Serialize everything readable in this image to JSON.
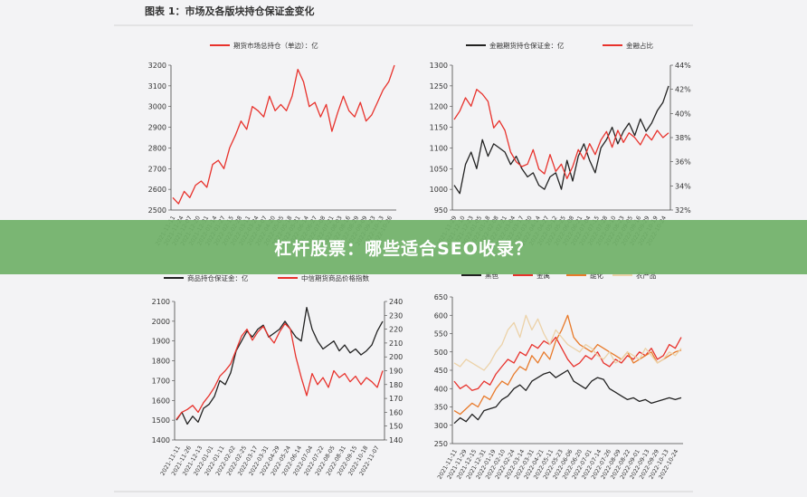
{
  "figure_title": "图表 1：市场及各版块持仓保证金变化",
  "banner_text": "杠杆股票：哪些适合SEO收录？",
  "colors": {
    "black": "#222222",
    "red": "#e8322c",
    "orange": "#e87a2a",
    "beige": "#ecd2a8",
    "banner": "#70b068"
  },
  "chart_data": [
    {
      "id": "total",
      "type": "line",
      "legend": [
        "期货市场总持仓（单边）：亿"
      ],
      "ylim": [
        2500,
        3200
      ],
      "yticks": [
        "2500",
        "2600",
        "2700",
        "2800",
        "2900",
        "3000",
        "3100",
        "3200"
      ],
      "xticks": [
        "2021-11-11",
        "2021-11-24",
        "2021-12-07",
        "2021-12-20",
        "2021-12-31",
        "2022-01-14",
        "2022-01-27",
        "2022-02-15",
        "2022-02-28",
        "2022-03-11",
        "2022-03-24",
        "2022-04-07",
        "2022-04-20",
        "2022-05-05",
        "2022-05-18",
        "2022-05-31",
        "2022-06-14",
        "2022-06-27",
        "2022-07-08",
        "2022-07-21",
        "2022-08-03",
        "2022-08-16",
        "2022-08-29",
        "2022-09-09",
        "2022-09-23",
        "2022-10-13",
        "2022-10-26"
      ],
      "series": [
        {
          "name": "期货市场总持仓（单边）：亿",
          "axis": "left",
          "color": "#e8322c",
          "values": [
            2560,
            2530,
            2590,
            2560,
            2620,
            2640,
            2610,
            2720,
            2740,
            2700,
            2800,
            2860,
            2930,
            2890,
            3000,
            2980,
            2950,
            3050,
            2980,
            3010,
            2980,
            3050,
            3180,
            3120,
            3000,
            3020,
            2950,
            3010,
            2880,
            2970,
            3050,
            2980,
            2950,
            3020,
            2930,
            2960,
            3020,
            3080,
            3120,
            3200
          ]
        }
      ]
    },
    {
      "id": "financial",
      "type": "line",
      "legend": [
        "金融期货持仓保证金：亿",
        "金融占比"
      ],
      "ylim": [
        950,
        1300
      ],
      "yticks": [
        "950",
        "1000",
        "1050",
        "1100",
        "1150",
        "1200",
        "1250",
        "1300"
      ],
      "y2lim": [
        32,
        44
      ],
      "y2ticks": [
        "32%",
        "34%",
        "36%",
        "38%",
        "40%",
        "42%",
        "44%"
      ],
      "xticks": [
        "2021-11-29",
        "2021-12-10",
        "2021-12-23",
        "2022-01-05",
        "2022-01-18",
        "2022-02-08",
        "2022-02-21",
        "2022-03-04",
        "2022-03-17",
        "2022-03-30",
        "2022-04-14",
        "2022-04-27",
        "2022-05-12",
        "2022-05-25",
        "2022-06-08",
        "2022-06-21",
        "2022-07-04",
        "2022-07-15",
        "2022-07-28",
        "2022-08-10",
        "2022-08-23",
        "2022-09-05",
        "2022-09-16",
        "2022-09-29",
        "2022-10-19",
        "2022-10-24"
      ],
      "series": [
        {
          "name": "金融期货持仓保证金：亿",
          "axis": "left",
          "color": "#222222",
          "values": [
            1010,
            990,
            1060,
            1090,
            1050,
            1120,
            1080,
            1110,
            1100,
            1090,
            1060,
            1080,
            1050,
            1030,
            1040,
            1010,
            1000,
            1030,
            1040,
            1000,
            1070,
            1020,
            1080,
            1110,
            1070,
            1040,
            1100,
            1120,
            1150,
            1110,
            1140,
            1160,
            1130,
            1170,
            1140,
            1160,
            1190,
            1210,
            1250
          ]
        },
        {
          "name": "金融占比",
          "axis": "right",
          "color": "#e8322c",
          "values": [
            39.5,
            40.2,
            41.3,
            40.6,
            42.0,
            41.6,
            41.0,
            38.8,
            39.4,
            38.6,
            36.8,
            36.0,
            35.6,
            35.8,
            37.0,
            35.4,
            35.0,
            36.6,
            35.2,
            35.8,
            34.6,
            35.6,
            37.0,
            36.2,
            37.5,
            36.6,
            37.8,
            38.5,
            37.2,
            38.6,
            37.6,
            38.4,
            38.0,
            37.4,
            38.3,
            37.8,
            38.6,
            38.0,
            38.4
          ]
        }
      ]
    },
    {
      "id": "commodity",
      "type": "line",
      "legend": [
        "商品持仓保证金：亿",
        "中信期货商品价格指数"
      ],
      "ylim": [
        1400,
        2100
      ],
      "yticks": [
        "1400",
        "1500",
        "1600",
        "1700",
        "1800",
        "1900",
        "2000",
        "2100"
      ],
      "y2lim": [
        140,
        240
      ],
      "y2ticks": [
        "140",
        "150",
        "160",
        "170",
        "180",
        "190",
        "200",
        "210",
        "220",
        "230",
        "240"
      ],
      "xticks": [
        "2021-11-11",
        "2021-11-26",
        "2021-12-13",
        "2022-01-01",
        "2022-01-11",
        "2022-02-02",
        "2022-02-25",
        "2022-03-17",
        "2022-03-31",
        "2022-04-29",
        "2022-05-24",
        "2022-06-14",
        "2022-07-04",
        "2022-07-22",
        "2022-08-05",
        "2022-08-31",
        "2022-09-15",
        "2022-10-18",
        "2022-11-07"
      ],
      "series": [
        {
          "name": "商品持仓保证金：亿",
          "axis": "left",
          "color": "#222222",
          "values": [
            1500,
            1540,
            1480,
            1520,
            1490,
            1560,
            1580,
            1620,
            1700,
            1680,
            1740,
            1850,
            1900,
            1950,
            1920,
            1960,
            1980,
            1920,
            1940,
            1960,
            2000,
            1960,
            1920,
            1900,
            2070,
            1960,
            1900,
            1860,
            1880,
            1900,
            1850,
            1880,
            1840,
            1860,
            1830,
            1850,
            1880,
            1950,
            2000
          ]
        },
        {
          "name": "中信期货商品价格指数",
          "axis": "right",
          "color": "#e8322c",
          "values": [
            155,
            160,
            162,
            165,
            160,
            167,
            172,
            178,
            186,
            190,
            195,
            205,
            215,
            220,
            212,
            218,
            222,
            215,
            210,
            218,
            224,
            220,
            200,
            185,
            172,
            188,
            180,
            185,
            178,
            190,
            185,
            188,
            182,
            186,
            180,
            185,
            182,
            178,
            190
          ]
        }
      ]
    },
    {
      "id": "sectors",
      "type": "line",
      "legend": [
        "黑色",
        "金属",
        "能化",
        "农产品"
      ],
      "ylim": [
        250,
        650
      ],
      "yticks": [
        "250",
        "300",
        "350",
        "400",
        "450",
        "500",
        "550",
        "600",
        "650"
      ],
      "xticks": [
        "2021-11-11",
        "2021-11-29",
        "2021-12-15",
        "2021-12-31",
        "2022-01-19",
        "2022-02-10",
        "2022-02-24",
        "2022-03-14",
        "2022-03-31",
        "2022-04-21",
        "2022-05-11",
        "2022-05-23",
        "2022-06-06",
        "2022-06-20",
        "2022-07-01",
        "2022-07-14",
        "2022-07-26",
        "2022-08-09",
        "2022-08-22",
        "2022-09-01",
        "2022-09-13",
        "2022-09-29",
        "2022-10-13",
        "2022-10-24"
      ],
      "series": [
        {
          "name": "黑色",
          "axis": "left",
          "color": "#222222",
          "values": [
            305,
            320,
            310,
            330,
            315,
            340,
            345,
            350,
            370,
            380,
            400,
            410,
            395,
            420,
            430,
            440,
            445,
            430,
            440,
            450,
            420,
            410,
            400,
            420,
            430,
            425,
            400,
            390,
            380,
            370,
            375,
            365,
            370,
            360,
            365,
            370,
            375,
            370,
            375
          ]
        },
        {
          "name": "金属",
          "axis": "left",
          "color": "#e8322c",
          "values": [
            420,
            400,
            410,
            395,
            400,
            420,
            410,
            440,
            460,
            480,
            470,
            500,
            490,
            520,
            510,
            530,
            520,
            540,
            510,
            480,
            460,
            470,
            490,
            480,
            500,
            470,
            460,
            480,
            470,
            490,
            480,
            500,
            490,
            510,
            480,
            490,
            520,
            510,
            540
          ]
        },
        {
          "name": "能化",
          "axis": "left",
          "color": "#e87a2a",
          "values": [
            340,
            330,
            345,
            360,
            350,
            380,
            370,
            400,
            420,
            410,
            440,
            460,
            450,
            490,
            470,
            500,
            480,
            530,
            560,
            600,
            540,
            520,
            510,
            500,
            520,
            510,
            500,
            490,
            480,
            500,
            470,
            480,
            490,
            500,
            470,
            480,
            490,
            500,
            505
          ]
        },
        {
          "name": "农产品",
          "axis": "left",
          "color": "#ecd2a8",
          "values": [
            470,
            460,
            480,
            470,
            460,
            450,
            470,
            500,
            520,
            560,
            580,
            540,
            600,
            560,
            590,
            550,
            520,
            560,
            540,
            520,
            510,
            500,
            520,
            510,
            490,
            480,
            500,
            470,
            480,
            500,
            490,
            480,
            510,
            490,
            470,
            480,
            500,
            490,
            510
          ]
        }
      ]
    }
  ]
}
